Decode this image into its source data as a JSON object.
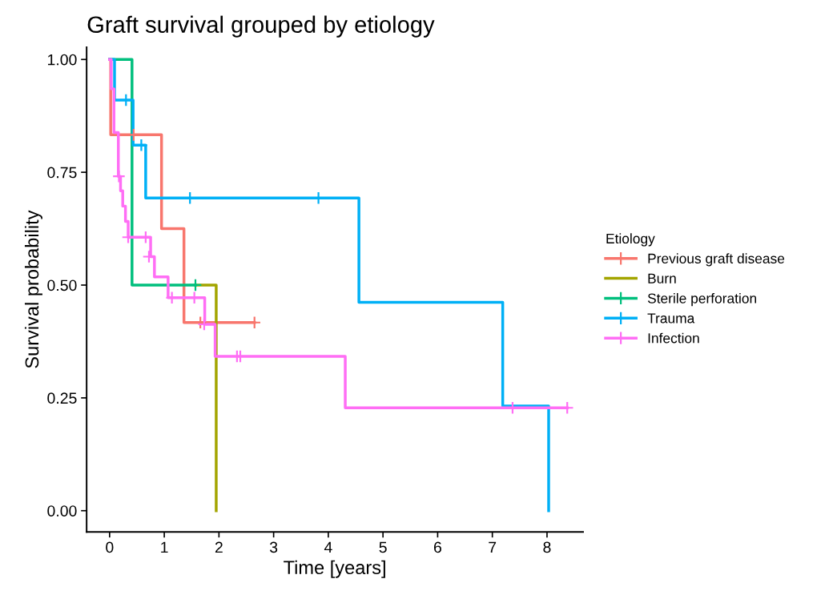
{
  "chart_data": {
    "type": "step",
    "title": "Graft survival grouped by etiology",
    "xlabel": "Time [years]",
    "ylabel": "Survival probability",
    "legend_title": "Etiology",
    "legend": "right",
    "grid": false,
    "xlim": [
      -0.42,
      8.66
    ],
    "ylim": [
      -0.047,
      1.027
    ],
    "xticks": [
      0,
      1,
      2,
      3,
      4,
      5,
      6,
      7,
      8
    ],
    "yticks": [
      {
        "value": 0,
        "label": "0.00"
      },
      {
        "value": 0.25,
        "label": "0.25"
      },
      {
        "value": 0.5,
        "label": "0.50"
      },
      {
        "value": 0.75,
        "label": "0.75"
      },
      {
        "value": 1,
        "label": "1.00"
      }
    ],
    "series": [
      {
        "name": "Previous graft disease",
        "color": "#f8766d",
        "x": [
          0,
          0.02,
          0.95,
          1.36,
          2.65
        ],
        "values": [
          1,
          0.833,
          0.625,
          0.417,
          0.417
        ]
      },
      {
        "name": "Burn",
        "color": "#a3a500",
        "x": [
          1.57,
          1.95,
          1.95
        ],
        "values": [
          0.5,
          0,
          0
        ]
      },
      {
        "name": "Sterile perforation",
        "color": "#00bf7d",
        "x": [
          0,
          0.41,
          1.57
        ],
        "values": [
          1,
          0.5,
          0.5
        ]
      },
      {
        "name": "Trauma",
        "color": "#00b0f6",
        "x": [
          0,
          0.09,
          0.43,
          0.66,
          4.56,
          7.19,
          8.03,
          8.03
        ],
        "values": [
          1,
          0.91,
          0.81,
          0.693,
          0.462,
          0.232,
          0,
          0
        ]
      },
      {
        "name": "Infection",
        "color": "#ff6ef5",
        "x": [
          0,
          0.03,
          0.08,
          0.16,
          0.2,
          0.24,
          0.29,
          0.34,
          0.75,
          0.82,
          1.07,
          1.74,
          1.93,
          4.31,
          8.37
        ],
        "values": [
          1,
          0.935,
          0.838,
          0.741,
          0.709,
          0.675,
          0.641,
          0.606,
          0.563,
          0.518,
          0.472,
          0.413,
          0.342,
          0.228,
          0.228
        ]
      },
      {
        "type": "scatter",
        "marker": "cross",
        "color": "#f8766d",
        "x": [
          0.44,
          1.66,
          2.65
        ],
        "values": [
          0.833,
          0.417,
          0.417
        ]
      },
      {
        "type": "scatter",
        "marker": "cross",
        "color": "#00bf7d",
        "x": [
          1.57
        ],
        "values": [
          0.5
        ]
      },
      {
        "type": "scatter",
        "marker": "cross",
        "color": "#00b0f6",
        "x": [
          0.3,
          0.58,
          1.47,
          3.82
        ],
        "values": [
          0.91,
          0.81,
          0.693,
          0.693
        ]
      },
      {
        "type": "scatter",
        "marker": "cross",
        "color": "#ff6ef5",
        "x": [
          0.17,
          0.34,
          0.66,
          0.72,
          1.14,
          1.55,
          1.73,
          2.33,
          2.39,
          7.37,
          8.37
        ],
        "values": [
          0.741,
          0.606,
          0.606,
          0.563,
          0.472,
          0.472,
          0.413,
          0.342,
          0.342,
          0.228,
          0.228
        ]
      }
    ]
  }
}
